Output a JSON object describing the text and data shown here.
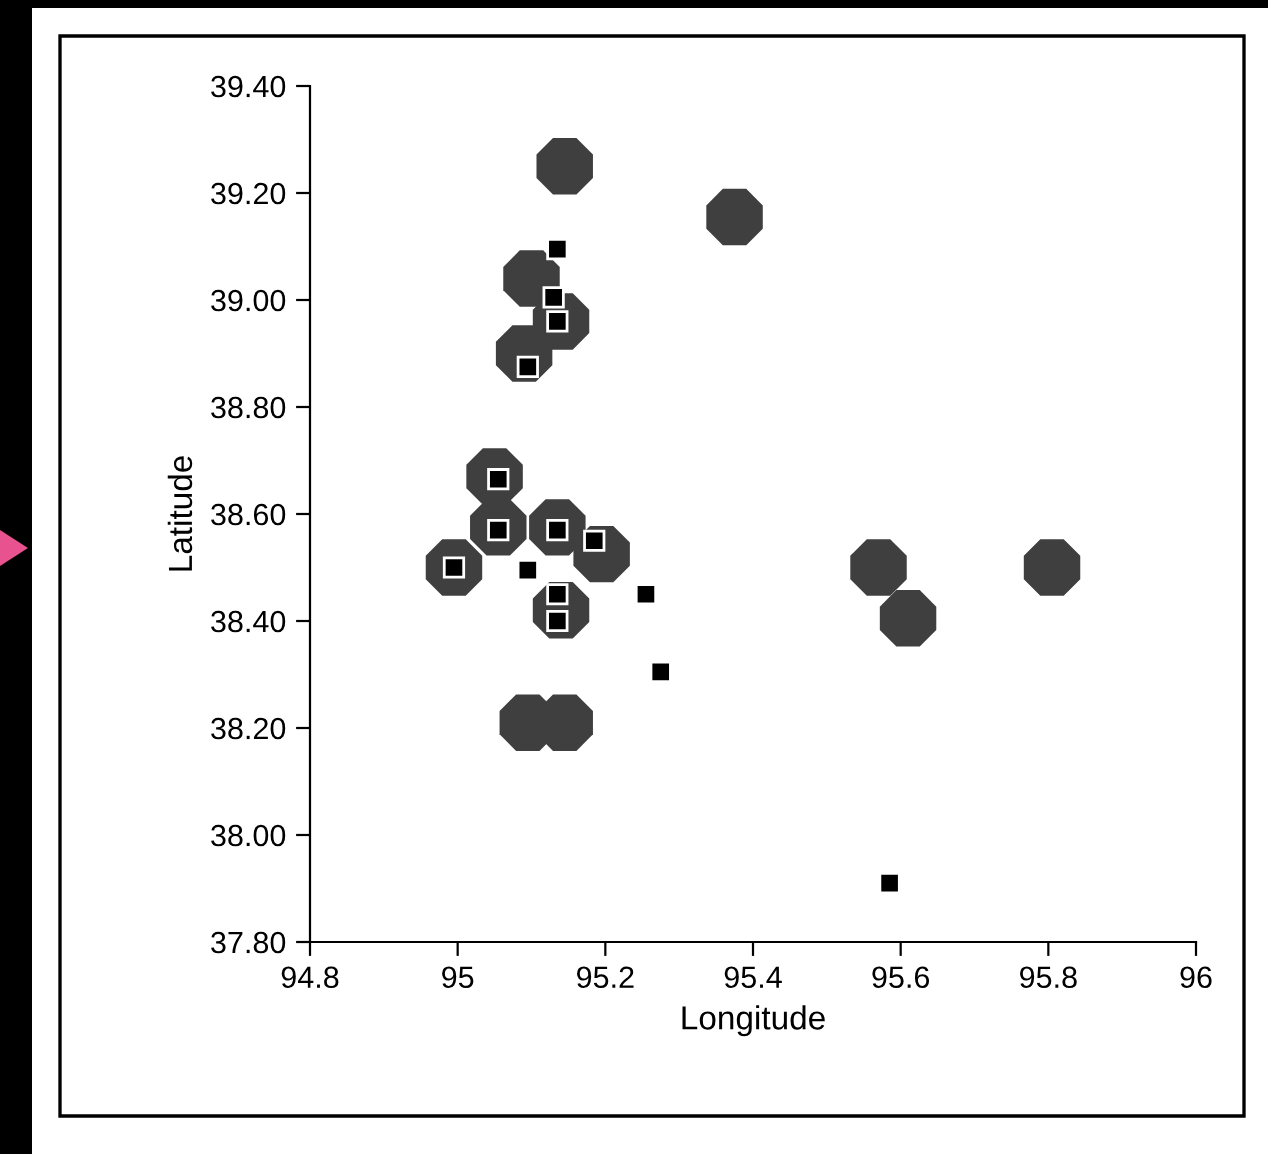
{
  "chart_data": {
    "type": "scatter",
    "xlabel": "Longitude",
    "ylabel": "Latitude",
    "xlim": [
      94.8,
      96
    ],
    "xticks": [
      94.8,
      95,
      95.2,
      95.4,
      95.6,
      95.8,
      96
    ],
    "ylim": [
      37.8,
      39.4
    ],
    "yticks": [
      {
        "value": 37.8,
        "label": "37.80"
      },
      {
        "value": 38.0,
        "label": "38.00"
      },
      {
        "value": 38.2,
        "label": "38.20"
      },
      {
        "value": 38.4,
        "label": "38.40"
      },
      {
        "value": 38.6,
        "label": "38.60"
      },
      {
        "value": 38.8,
        "label": "38.80"
      },
      {
        "value": 39.0,
        "label": "39.00"
      },
      {
        "value": 39.2,
        "label": "39.20"
      },
      {
        "value": 39.4,
        "label": "39.40"
      }
    ],
    "grid": false,
    "legend": false,
    "series": [
      {
        "color": "#3f3f3f",
        "marker": "circle",
        "x": [
          95.145,
          95.375,
          95.1,
          95.14,
          95.09,
          95.05,
          95.055,
          94.995,
          95.135,
          95.195,
          95.14,
          95.095,
          95.145,
          95.57,
          95.61,
          95.805
        ],
        "values": [
          39.25,
          39.155,
          39.04,
          38.96,
          38.9,
          38.67,
          38.575,
          38.5,
          38.575,
          38.525,
          38.42,
          38.21,
          38.21,
          38.5,
          38.405,
          38.5
        ]
      },
      {
        "color": "#000000",
        "marker": "square",
        "x": [
          95.135,
          95.13,
          95.135,
          95.095,
          95.055,
          95.055,
          94.995,
          95.095,
          95.135,
          95.185,
          95.135,
          95.135,
          95.255,
          95.275,
          95.585
        ],
        "values": [
          39.095,
          39.005,
          38.96,
          38.875,
          38.665,
          38.57,
          38.5,
          38.495,
          38.57,
          38.55,
          38.45,
          38.4,
          38.45,
          38.305,
          37.91
        ]
      }
    ]
  }
}
